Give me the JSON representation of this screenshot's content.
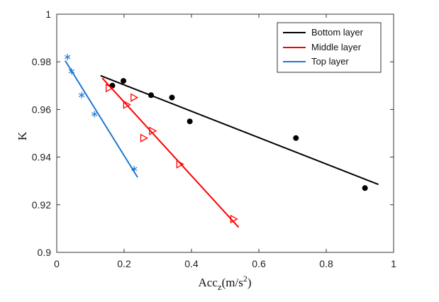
{
  "chart_data": {
    "type": "scatter",
    "title": "",
    "xlabel": "Acc",
    "xlabel_sub": "z",
    "xlabel_unit_open": "(m/s",
    "xlabel_sup": "2",
    "xlabel_unit_close": ")",
    "ylabel": "K",
    "xlim": [
      0,
      1
    ],
    "ylim": [
      0.9,
      1
    ],
    "xticks": [
      0,
      0.2,
      0.4,
      0.6,
      0.8,
      1
    ],
    "yticks": [
      0.9,
      0.92,
      0.94,
      0.96,
      0.98,
      1
    ],
    "xtick_labels": [
      "0",
      "0.2",
      "0.4",
      "0.6",
      "0.8",
      "1"
    ],
    "ytick_labels": [
      "0.9",
      "0.92",
      "0.94",
      "0.96",
      "0.98",
      "1"
    ],
    "grid": false,
    "legend_position": "top-right",
    "series": [
      {
        "name": "Bottom layer",
        "color": "#000000",
        "marker": "filled-circle",
        "points": [
          {
            "x": 0.165,
            "y": 0.97
          },
          {
            "x": 0.198,
            "y": 0.972
          },
          {
            "x": 0.28,
            "y": 0.966
          },
          {
            "x": 0.342,
            "y": 0.965
          },
          {
            "x": 0.395,
            "y": 0.955
          },
          {
            "x": 0.71,
            "y": 0.948
          },
          {
            "x": 0.915,
            "y": 0.927
          }
        ],
        "fit": {
          "x": [
            0.13,
            0.955
          ],
          "y": [
            0.9742,
            0.9285
          ]
        }
      },
      {
        "name": "Middle layer",
        "color": "#ff0000",
        "marker": "triangle-right-open",
        "points": [
          {
            "x": 0.155,
            "y": 0.969
          },
          {
            "x": 0.207,
            "y": 0.962
          },
          {
            "x": 0.229,
            "y": 0.965
          },
          {
            "x": 0.258,
            "y": 0.948
          },
          {
            "x": 0.284,
            "y": 0.951
          },
          {
            "x": 0.365,
            "y": 0.937
          },
          {
            "x": 0.525,
            "y": 0.914
          }
        ],
        "fit": {
          "x": [
            0.135,
            0.54
          ],
          "y": [
            0.9732,
            0.9105
          ]
        }
      },
      {
        "name": "Top layer",
        "color": "#1f77d0",
        "marker": "asterisk",
        "points": [
          {
            "x": 0.032,
            "y": 0.982
          },
          {
            "x": 0.044,
            "y": 0.976
          },
          {
            "x": 0.074,
            "y": 0.966
          },
          {
            "x": 0.112,
            "y": 0.958
          },
          {
            "x": 0.23,
            "y": 0.935
          }
        ],
        "fit": {
          "x": [
            0.025,
            0.24
          ],
          "y": [
            0.9805,
            0.9315
          ]
        }
      }
    ]
  }
}
